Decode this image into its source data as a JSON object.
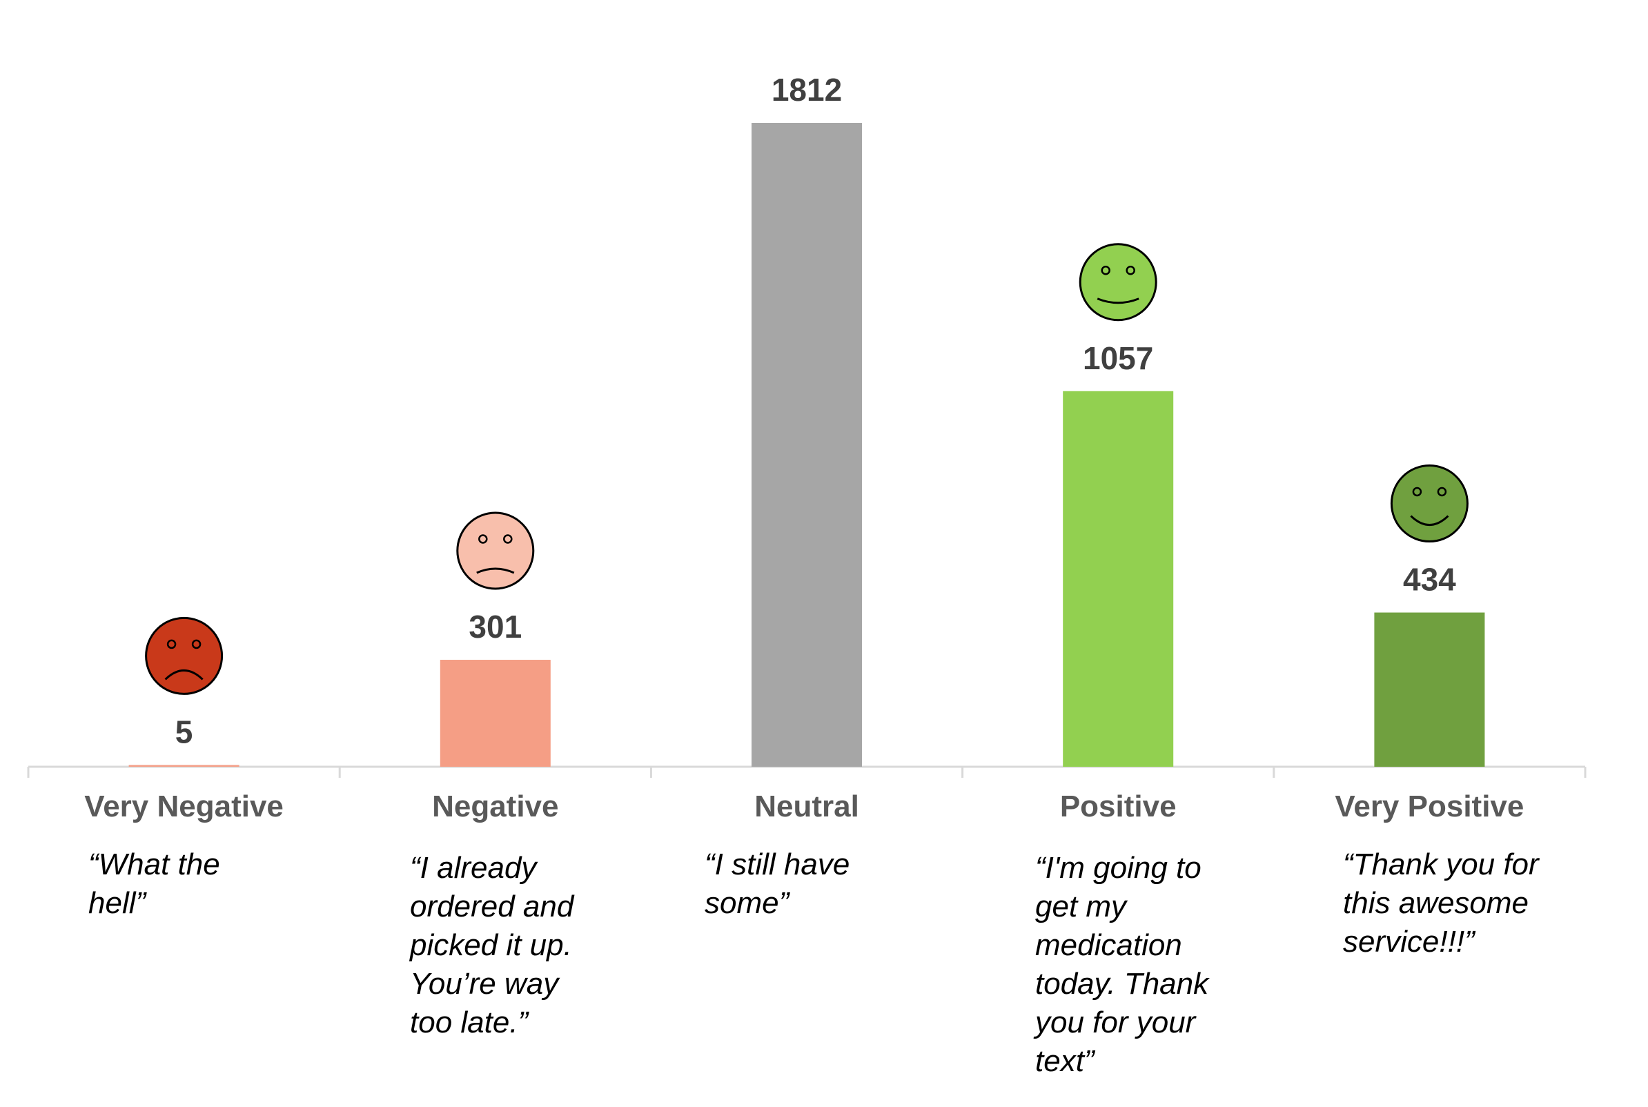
{
  "chart_data": {
    "type": "bar",
    "categories": [
      "Very Negative",
      "Negative",
      "Neutral",
      "Positive",
      "Very Positive"
    ],
    "values": [
      5,
      301,
      1812,
      1057,
      434
    ],
    "value_labels": [
      "5",
      "301",
      "1812",
      "1057",
      "434"
    ],
    "colors": [
      "#F4A089",
      "#F59E85",
      "#A6A6A6",
      "#92D050",
      "#70A03F"
    ],
    "face_colors": [
      "#C9391A",
      "#F8BFAC",
      null,
      "#92D050",
      "#70A03F"
    ],
    "face_moods": [
      "very-sad",
      "sad",
      null,
      "happy",
      "very-happy"
    ],
    "quotes": [
      "“What the\nhell”",
      "“I already\nordered and\npicked it up.\nYou’re way\ntoo late.”",
      "“I still have\nsome”",
      "“I'm going to\nget my\nmedication\ntoday. Thank\nyou for your\ntext”",
      "“Thank you for\nthis awesome\nservice!!!”"
    ],
    "ylim": [
      0,
      1812
    ],
    "grid": false,
    "legend": "none"
  }
}
